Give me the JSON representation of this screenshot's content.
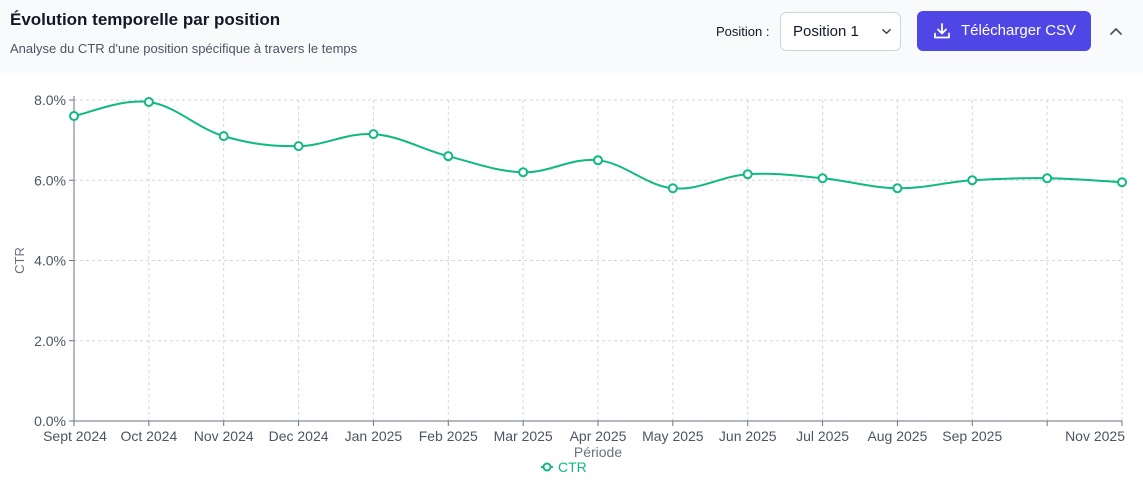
{
  "header": {
    "title": "Évolution temporelle par position",
    "subtitle": "Analyse du CTR d'une position spécifique à travers le temps",
    "position_label": "Position :",
    "position_value": "Position 1",
    "download_label": "Télécharger CSV"
  },
  "icons": {
    "download": "download-icon",
    "select": "chevron-down-icon",
    "collapse": "chevron-up-icon"
  },
  "colors": {
    "series": "#10b981",
    "accent": "#4f46e5",
    "grid": "#d1d5db",
    "axis": "#6b7280"
  },
  "chart_data": {
    "type": "line",
    "title": "",
    "xlabel": "Période",
    "ylabel": "CTR",
    "ylim": [
      0,
      8
    ],
    "y_ticks": [
      "0.0%",
      "2.0%",
      "4.0%",
      "6.0%",
      "8.0%"
    ],
    "y_tick_values": [
      0,
      2,
      4,
      6,
      8
    ],
    "x_tick_labels": [
      "Sept 2024",
      "Oct 2024",
      "Nov 2024",
      "Dec 2024",
      "Jan 2025",
      "Feb 2025",
      "Mar 2025",
      "Apr 2025",
      "May 2025",
      "Jun 2025",
      "Jul 2025",
      "Aug 2025",
      "Sep 2025",
      "",
      "Nov 2025"
    ],
    "grid": true,
    "legend": "bottom-center",
    "series": [
      {
        "name": "CTR",
        "values": [
          7.6,
          7.95,
          7.1,
          6.85,
          7.15,
          6.6,
          6.2,
          6.5,
          5.8,
          6.15,
          6.05,
          5.8,
          6.0,
          6.05,
          5.95
        ]
      }
    ]
  }
}
